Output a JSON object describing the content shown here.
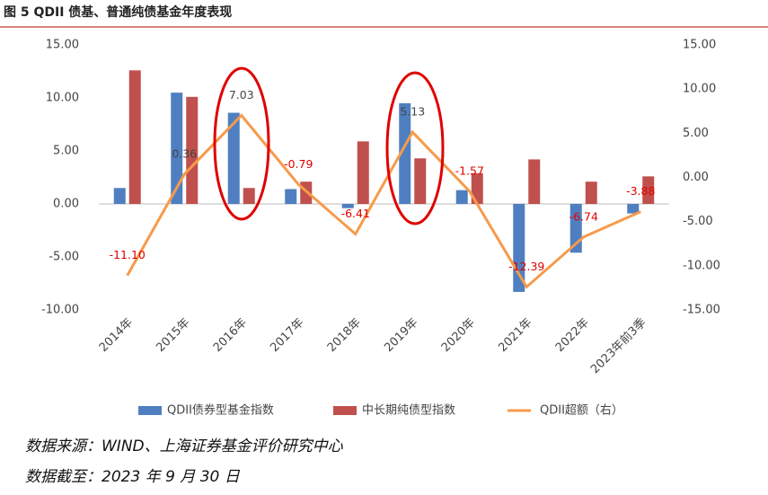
{
  "chart_data": {
    "type": "bar",
    "title": "图 5 QDII 债基、普通纯债基金年度表现",
    "categories": [
      "2014年",
      "2015年",
      "2016年",
      "2017年",
      "2018年",
      "2019年",
      "2020年",
      "2021年",
      "2022年",
      "2023年前3季"
    ],
    "series": [
      {
        "name": "QDII债券型基金指数",
        "type": "bar",
        "color": "#4f7fc0",
        "values": [
          1.5,
          10.5,
          8.6,
          1.4,
          -0.4,
          9.5,
          1.3,
          -8.3,
          -4.6,
          -0.9
        ]
      },
      {
        "name": "中长期纯债型指数",
        "type": "bar",
        "color": "#c0504d",
        "values": [
          12.6,
          10.1,
          1.5,
          2.1,
          5.9,
          4.3,
          2.9,
          4.2,
          2.1,
          2.6
        ]
      },
      {
        "name": "QDII超额（右）",
        "type": "line",
        "axis": "y2",
        "color": "#f79a4a",
        "values": [
          -11.1,
          0.36,
          7.03,
          -0.79,
          -6.41,
          5.13,
          -1.57,
          -12.39,
          -6.74,
          -3.88
        ],
        "value_labels": [
          "-11.10",
          "0.36",
          "7.03",
          "-0.79",
          "-6.41",
          "5.13",
          "-1.57",
          "-12.39",
          "-6.74",
          "-3.88"
        ]
      }
    ],
    "ylim": [
      -10,
      15
    ],
    "yticks": [
      {
        "value": -10,
        "label": "-10.00"
      },
      {
        "value": -5,
        "label": "-5.00"
      },
      {
        "value": 0,
        "label": "0.00"
      },
      {
        "value": 5,
        "label": "5.00"
      },
      {
        "value": 10,
        "label": "10.00"
      },
      {
        "value": 15,
        "label": "15.00"
      }
    ],
    "y2lim": [
      -15,
      15
    ],
    "y2ticks": [
      {
        "value": -15,
        "label": "-15.00"
      },
      {
        "value": -10,
        "label": "-10.00"
      },
      {
        "value": -5,
        "label": "-5.00"
      },
      {
        "value": 0,
        "label": "0.00"
      },
      {
        "value": 5,
        "label": "5.00"
      },
      {
        "value": 10,
        "label": "10.00"
      },
      {
        "value": 15,
        "label": "15.00"
      }
    ],
    "grid": false,
    "legend": "bottom",
    "source": "数据来源：WIND、上海证券基金评价研究中心",
    "date_note": "数据截至：2023 年 9 月 30 日"
  }
}
